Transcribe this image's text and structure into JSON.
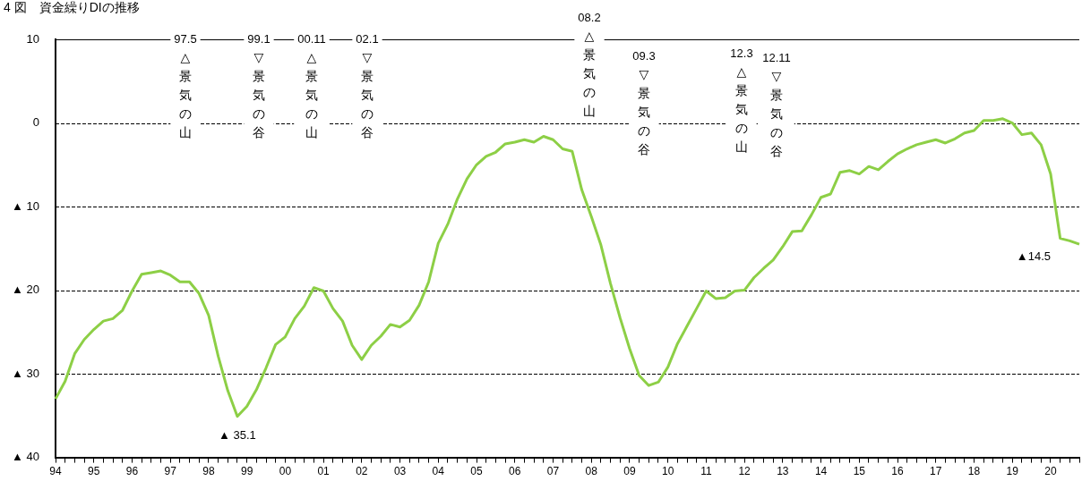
{
  "chart_data": {
    "type": "line",
    "title": "4 図　資金繰りDIの推移",
    "x": [
      1994,
      1994.25,
      1994.5,
      1994.75,
      1995,
      1995.25,
      1995.5,
      1995.75,
      1996,
      1996.25,
      1996.5,
      1996.75,
      1997,
      1997.25,
      1997.5,
      1997.75,
      1998,
      1998.25,
      1998.5,
      1998.75,
      1999,
      1999.25,
      1999.5,
      1999.75,
      2000,
      2000.25,
      2000.5,
      2000.75,
      2001,
      2001.25,
      2001.5,
      2001.75,
      2002,
      2002.25,
      2002.5,
      2002.75,
      2003,
      2003.25,
      2003.5,
      2003.75,
      2004,
      2004.25,
      2004.5,
      2004.75,
      2005,
      2005.25,
      2005.5,
      2005.75,
      2006,
      2006.25,
      2006.5,
      2006.75,
      2007,
      2007.25,
      2007.5,
      2007.75,
      2008,
      2008.25,
      2008.5,
      2008.75,
      2009,
      2009.25,
      2009.5,
      2009.75,
      2010,
      2010.25,
      2010.5,
      2010.75,
      2011,
      2011.25,
      2011.5,
      2011.75,
      2012,
      2012.25,
      2012.5,
      2012.75,
      2013,
      2013.25,
      2013.5,
      2013.75,
      2014,
      2014.25,
      2014.5,
      2014.75,
      2015,
      2015.25,
      2015.5,
      2015.75,
      2016,
      2016.25,
      2016.5,
      2016.75,
      2017,
      2017.25,
      2017.5,
      2017.75,
      2018,
      2018.25,
      2018.5,
      2018.75,
      2019,
      2019.25,
      2019.5,
      2019.75,
      2020,
      2020.25,
      2020.5,
      2020.75
    ],
    "series": [
      {
        "color": "#8dcf46",
        "values": [
          -33.0,
          -30.9,
          -27.6,
          -25.9,
          -24.7,
          -23.7,
          -23.4,
          -22.4,
          -20.1,
          -18.1,
          -17.9,
          -17.7,
          -18.2,
          -19.0,
          -19.0,
          -20.4,
          -23.0,
          -27.9,
          -32.0,
          -35.1,
          -33.9,
          -31.9,
          -29.3,
          -26.5,
          -25.6,
          -23.4,
          -21.9,
          -19.7,
          -20.1,
          -22.2,
          -23.7,
          -26.6,
          -28.3,
          -26.6,
          -25.5,
          -24.1,
          -24.4,
          -23.6,
          -21.8,
          -19.0,
          -14.4,
          -12.1,
          -9.1,
          -6.7,
          -5.0,
          -4.0,
          -3.5,
          -2.5,
          -2.3,
          -2.0,
          -2.3,
          -1.6,
          -2.0,
          -3.1,
          -3.4,
          -8.0,
          -11.2,
          -14.6,
          -19.2,
          -23.3,
          -27.0,
          -30.2,
          -31.4,
          -31.0,
          -29.2,
          -26.4,
          -24.3,
          -22.2,
          -20.1,
          -21.0,
          -20.9,
          -20.1,
          -20.0,
          -18.5,
          -17.4,
          -16.4,
          -14.8,
          -13.0,
          -12.9,
          -11.0,
          -8.9,
          -8.5,
          -5.9,
          -5.7,
          -6.1,
          -5.2,
          -5.6,
          -4.6,
          -3.7,
          -3.1,
          -2.6,
          -2.3,
          -2.0,
          -2.4,
          -1.9,
          -1.2,
          -0.9,
          0.3,
          0.3,
          0.5,
          0.0,
          -1.4,
          -1.2,
          -2.6,
          -6.1,
          -13.8,
          -14.1,
          -14.5
        ]
      }
    ],
    "xlim": [
      1994,
      2020.75
    ],
    "xticks": [
      {
        "value": 1994,
        "label": "94"
      },
      {
        "value": 1994.25,
        "label": null
      },
      {
        "value": 1994.5,
        "label": null
      },
      {
        "value": 1994.75,
        "label": null
      },
      {
        "value": 1995,
        "label": "95"
      },
      {
        "value": 1995.25,
        "label": null
      },
      {
        "value": 1995.5,
        "label": null
      },
      {
        "value": 1995.75,
        "label": null
      },
      {
        "value": 1996,
        "label": "96"
      },
      {
        "value": 1996.25,
        "label": null
      },
      {
        "value": 1996.5,
        "label": null
      },
      {
        "value": 1996.75,
        "label": null
      },
      {
        "value": 1997,
        "label": "97"
      },
      {
        "value": 1997.25,
        "label": null
      },
      {
        "value": 1997.5,
        "label": null
      },
      {
        "value": 1997.75,
        "label": null
      },
      {
        "value": 1998,
        "label": "98"
      },
      {
        "value": 1998.25,
        "label": null
      },
      {
        "value": 1998.5,
        "label": null
      },
      {
        "value": 1998.75,
        "label": null
      },
      {
        "value": 1999,
        "label": "99"
      },
      {
        "value": 1999.25,
        "label": null
      },
      {
        "value": 1999.5,
        "label": null
      },
      {
        "value": 1999.75,
        "label": null
      },
      {
        "value": 2000,
        "label": "00"
      },
      {
        "value": 2000.25,
        "label": null
      },
      {
        "value": 2000.5,
        "label": null
      },
      {
        "value": 2000.75,
        "label": null
      },
      {
        "value": 2001,
        "label": "01"
      },
      {
        "value": 2001.25,
        "label": null
      },
      {
        "value": 2001.5,
        "label": null
      },
      {
        "value": 2001.75,
        "label": null
      },
      {
        "value": 2002,
        "label": "02"
      },
      {
        "value": 2002.25,
        "label": null
      },
      {
        "value": 2002.5,
        "label": null
      },
      {
        "value": 2002.75,
        "label": null
      },
      {
        "value": 2003,
        "label": "03"
      },
      {
        "value": 2003.25,
        "label": null
      },
      {
        "value": 2003.5,
        "label": null
      },
      {
        "value": 2003.75,
        "label": null
      },
      {
        "value": 2004,
        "label": "04"
      },
      {
        "value": 2004.25,
        "label": null
      },
      {
        "value": 2004.5,
        "label": null
      },
      {
        "value": 2004.75,
        "label": null
      },
      {
        "value": 2005,
        "label": "05"
      },
      {
        "value": 2005.25,
        "label": null
      },
      {
        "value": 2005.5,
        "label": null
      },
      {
        "value": 2005.75,
        "label": null
      },
      {
        "value": 2006,
        "label": "06"
      },
      {
        "value": 2006.25,
        "label": null
      },
      {
        "value": 2006.5,
        "label": null
      },
      {
        "value": 2006.75,
        "label": null
      },
      {
        "value": 2007,
        "label": "07"
      },
      {
        "value": 2007.25,
        "label": null
      },
      {
        "value": 2007.5,
        "label": null
      },
      {
        "value": 2007.75,
        "label": null
      },
      {
        "value": 2008,
        "label": "08"
      },
      {
        "value": 2008.25,
        "label": null
      },
      {
        "value": 2008.5,
        "label": null
      },
      {
        "value": 2008.75,
        "label": null
      },
      {
        "value": 2009,
        "label": "09"
      },
      {
        "value": 2009.25,
        "label": null
      },
      {
        "value": 2009.5,
        "label": null
      },
      {
        "value": 2009.75,
        "label": null
      },
      {
        "value": 2010,
        "label": "10"
      },
      {
        "value": 2010.25,
        "label": null
      },
      {
        "value": 2010.5,
        "label": null
      },
      {
        "value": 2010.75,
        "label": null
      },
      {
        "value": 2011,
        "label": "11"
      },
      {
        "value": 2011.25,
        "label": null
      },
      {
        "value": 2011.5,
        "label": null
      },
      {
        "value": 2011.75,
        "label": null
      },
      {
        "value": 2012,
        "label": "12"
      },
      {
        "value": 2012.25,
        "label": null
      },
      {
        "value": 2012.5,
        "label": null
      },
      {
        "value": 2012.75,
        "label": null
      },
      {
        "value": 2013,
        "label": "13"
      },
      {
        "value": 2013.25,
        "label": null
      },
      {
        "value": 2013.5,
        "label": null
      },
      {
        "value": 2013.75,
        "label": null
      },
      {
        "value": 2014,
        "label": "14"
      },
      {
        "value": 2014.25,
        "label": null
      },
      {
        "value": 2014.5,
        "label": null
      },
      {
        "value": 2014.75,
        "label": null
      },
      {
        "value": 2015,
        "label": "15"
      },
      {
        "value": 2015.25,
        "label": null
      },
      {
        "value": 2015.5,
        "label": null
      },
      {
        "value": 2015.75,
        "label": null
      },
      {
        "value": 2016,
        "label": "16"
      },
      {
        "value": 2016.25,
        "label": null
      },
      {
        "value": 2016.5,
        "label": null
      },
      {
        "value": 2016.75,
        "label": null
      },
      {
        "value": 2017,
        "label": "17"
      },
      {
        "value": 2017.25,
        "label": null
      },
      {
        "value": 2017.5,
        "label": null
      },
      {
        "value": 2017.75,
        "label": null
      },
      {
        "value": 2018,
        "label": "18"
      },
      {
        "value": 2018.25,
        "label": null
      },
      {
        "value": 2018.5,
        "label": null
      },
      {
        "value": 2018.75,
        "label": null
      },
      {
        "value": 2019,
        "label": "19"
      },
      {
        "value": 2019.25,
        "label": null
      },
      {
        "value": 2019.5,
        "label": null
      },
      {
        "value": 2019.75,
        "label": null
      },
      {
        "value": 2020,
        "label": "20"
      },
      {
        "value": 2020.25,
        "label": null
      },
      {
        "value": 2020.5,
        "label": null
      },
      {
        "value": 2020.75,
        "label": null
      }
    ],
    "ylim": [
      -40,
      10
    ],
    "yticks": [
      {
        "value": -40,
        "label": "▲ 40"
      },
      {
        "value": -30,
        "label": "▲ 30"
      },
      {
        "value": -20,
        "label": "▲ 20"
      },
      {
        "value": -10,
        "label": "▲ 10"
      },
      0,
      10
    ],
    "grid": "y",
    "legend": false,
    "marker": "none",
    "line_style": "solid",
    "annotations": [
      "97.5 △ 景気の山",
      "99.1 ▽ 景気の谷",
      "00.11 △ 景気の山",
      "02.1 ▽ 景気の谷",
      "08.2 △ 景気の山",
      "09.3 ▽ 景気の谷",
      "12.3 △ 景気の山",
      "12.11 ▽ 景気の谷",
      {
        "text": "▲ 35.1",
        "x": 1998.75,
        "y": -35.1
      },
      {
        "text": "▲14.5",
        "x": 2020.75,
        "y": -14.5
      }
    ]
  }
}
